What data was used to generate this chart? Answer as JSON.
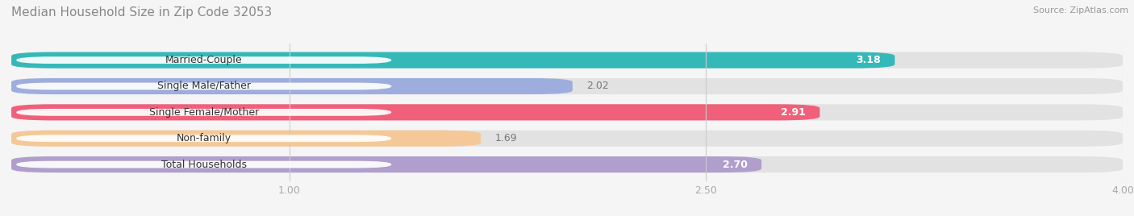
{
  "title": "Median Household Size in Zip Code 32053",
  "source": "Source: ZipAtlas.com",
  "categories": [
    "Married-Couple",
    "Single Male/Father",
    "Single Female/Mother",
    "Non-family",
    "Total Households"
  ],
  "values": [
    3.18,
    2.02,
    2.91,
    1.69,
    2.7
  ],
  "bar_colors": [
    "#35b8b8",
    "#9daede",
    "#f0607a",
    "#f5c897",
    "#b09fcc"
  ],
  "value_inside": [
    true,
    false,
    true,
    false,
    true
  ],
  "xlim": [
    0,
    4.0
  ],
  "xticks": [
    1.0,
    2.5,
    4.0
  ],
  "xticklabels": [
    "1.00",
    "2.50",
    "4.00"
  ],
  "background_color": "#f5f5f5",
  "bar_bg_color": "#e2e2e2",
  "title_fontsize": 11,
  "source_fontsize": 8,
  "label_fontsize": 9,
  "value_fontsize": 9,
  "bar_height": 0.62,
  "bar_gap": 0.38
}
